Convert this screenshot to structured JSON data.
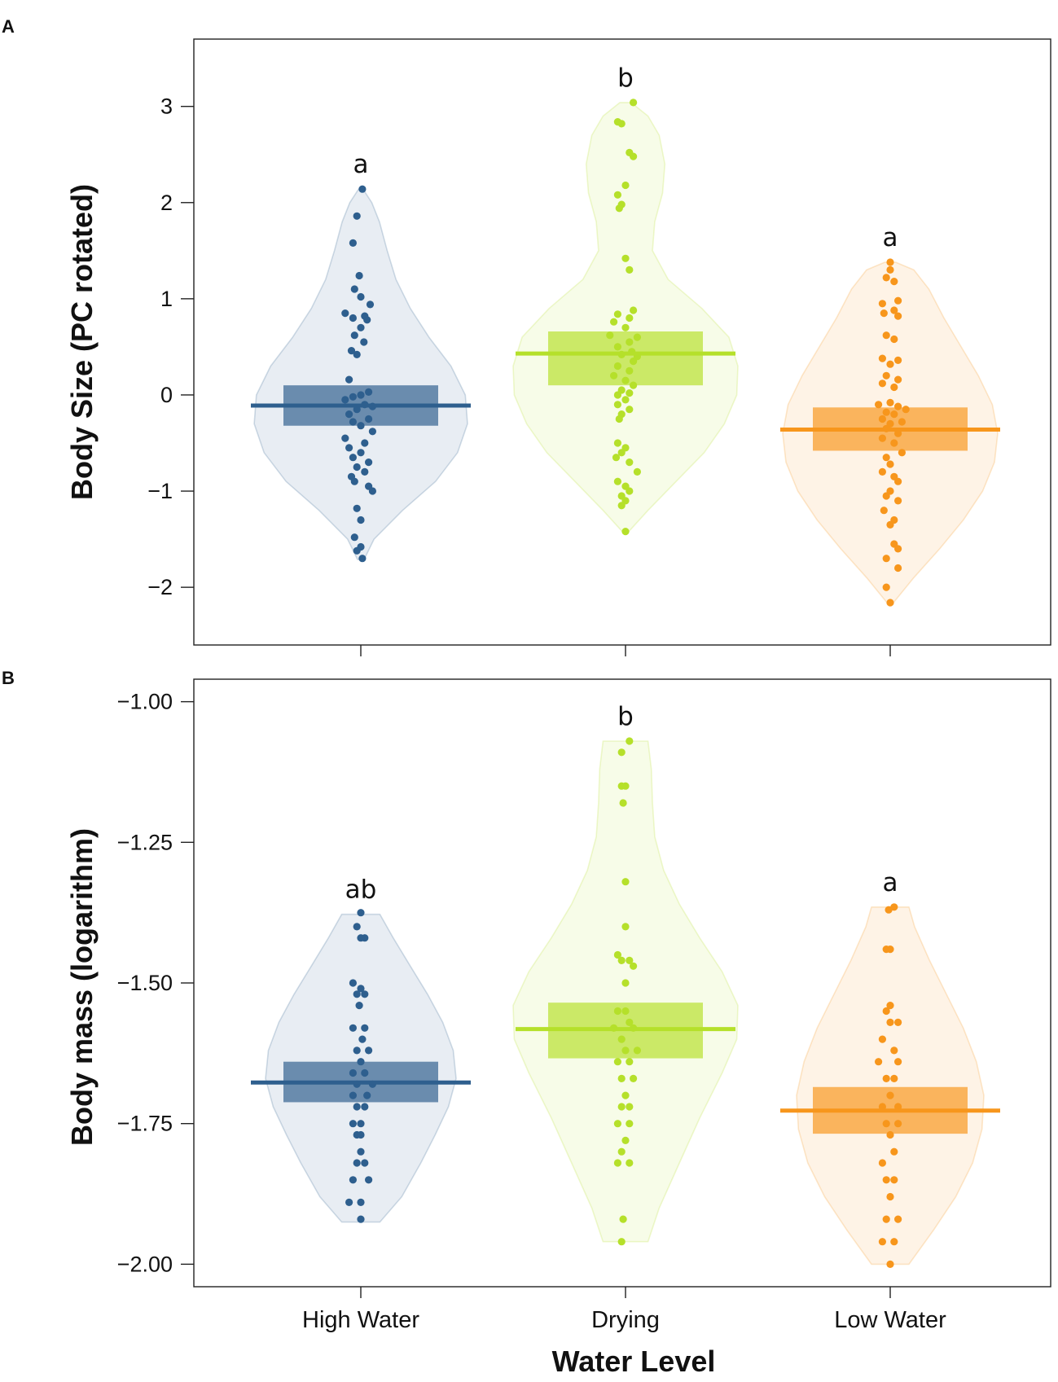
{
  "x_axis_title": "Water Level",
  "chart_data": [
    {
      "type": "violin",
      "panel": "A",
      "ylabel": "Body Size (PC rotated)",
      "xlabel": "",
      "ylim": [
        -2.6,
        3.7
      ],
      "yticks": [
        -2,
        -1,
        0,
        1,
        2,
        3
      ],
      "ytick_labels": [
        "−2",
        "−1",
        "0",
        "1",
        "2",
        "3"
      ],
      "categories": [
        "High Water",
        "Drying",
        "Low Water"
      ],
      "colors": [
        "#2e5f8e",
        "#b5e02a",
        "#f7961c"
      ],
      "groups": [
        {
          "name": "High Water",
          "mean": -0.11,
          "ci_low": -0.32,
          "ci_high": 0.1,
          "letter": "a",
          "violin": [
            [
              -1.71,
              0.03
            ],
            [
              -1.5,
              0.12
            ],
            [
              -1.2,
              0.38
            ],
            [
              -0.9,
              0.68
            ],
            [
              -0.6,
              0.88
            ],
            [
              -0.3,
              0.97
            ],
            [
              0.0,
              0.95
            ],
            [
              0.3,
              0.82
            ],
            [
              0.6,
              0.62
            ],
            [
              0.9,
              0.45
            ],
            [
              1.2,
              0.32
            ],
            [
              1.5,
              0.24
            ],
            [
              1.8,
              0.17
            ],
            [
              2.0,
              0.1
            ],
            [
              2.14,
              0.02
            ]
          ],
          "points": [
            2.14,
            1.86,
            1.58,
            1.24,
            1.1,
            1.02,
            0.94,
            0.85,
            0.82,
            0.8,
            0.78,
            0.7,
            0.62,
            0.55,
            0.46,
            0.42,
            0.16,
            0.03,
            0.0,
            -0.02,
            -0.05,
            -0.1,
            -0.12,
            -0.15,
            -0.2,
            -0.25,
            -0.28,
            -0.32,
            -0.38,
            -0.45,
            -0.5,
            -0.55,
            -0.6,
            -0.65,
            -0.7,
            -0.75,
            -0.8,
            -0.85,
            -0.9,
            -0.95,
            -1.0,
            -1.18,
            -1.3,
            -1.48,
            -1.58,
            -1.62,
            -1.7
          ],
          "offsets": [
            0.02,
            -0.05,
            -0.1,
            -0.02,
            -0.08,
            0.0,
            0.12,
            -0.2,
            0.05,
            -0.1,
            0.08,
            0.0,
            -0.08,
            0.04,
            -0.12,
            -0.05,
            -0.15,
            0.1,
            0.0,
            -0.1,
            -0.2,
            0.05,
            0.15,
            -0.05,
            -0.15,
            0.1,
            -0.1,
            0.0,
            0.15,
            -0.2,
            0.05,
            -0.15,
            0.0,
            -0.1,
            0.1,
            -0.05,
            0.05,
            -0.12,
            -0.08,
            0.1,
            0.15,
            -0.05,
            0.0,
            -0.08,
            0.0,
            -0.05,
            0.02
          ]
        },
        {
          "name": "Drying",
          "mean": 0.43,
          "ci_low": 0.1,
          "ci_high": 0.66,
          "letter": "b",
          "violin": [
            [
              -1.42,
              0.03
            ],
            [
              -1.2,
              0.2
            ],
            [
              -0.9,
              0.45
            ],
            [
              -0.6,
              0.7
            ],
            [
              -0.3,
              0.88
            ],
            [
              0.0,
              0.99
            ],
            [
              0.3,
              1.0
            ],
            [
              0.6,
              0.92
            ],
            [
              0.9,
              0.68
            ],
            [
              1.2,
              0.38
            ],
            [
              1.5,
              0.24
            ],
            [
              1.8,
              0.26
            ],
            [
              2.1,
              0.33
            ],
            [
              2.4,
              0.35
            ],
            [
              2.7,
              0.3
            ],
            [
              2.9,
              0.2
            ],
            [
              3.04,
              0.05
            ]
          ],
          "points": [
            3.04,
            2.84,
            2.82,
            2.52,
            2.48,
            2.18,
            2.08,
            1.98,
            1.94,
            1.42,
            1.3,
            0.88,
            0.84,
            0.8,
            0.76,
            0.7,
            0.62,
            0.6,
            0.55,
            0.5,
            0.45,
            0.42,
            0.4,
            0.35,
            0.3,
            0.25,
            0.2,
            0.15,
            0.1,
            0.05,
            0.02,
            0.0,
            -0.05,
            -0.1,
            -0.15,
            -0.2,
            -0.25,
            -0.5,
            -0.55,
            -0.6,
            -0.65,
            -0.7,
            -0.8,
            -0.9,
            -0.95,
            -1.0,
            -1.05,
            -1.1,
            -1.15,
            -1.42
          ],
          "offsets": [
            0.1,
            -0.1,
            -0.05,
            0.05,
            0.1,
            0.0,
            -0.1,
            -0.05,
            -0.08,
            0.0,
            0.05,
            0.1,
            -0.1,
            0.05,
            -0.15,
            0.0,
            -0.2,
            0.15,
            0.05,
            -0.1,
            0.08,
            -0.05,
            0.15,
            0.1,
            -0.1,
            0.05,
            -0.15,
            0.0,
            0.1,
            -0.05,
            0.05,
            -0.1,
            0.0,
            -0.1,
            0.05,
            -0.05,
            -0.08,
            -0.1,
            0.0,
            -0.05,
            -0.12,
            0.05,
            0.15,
            -0.1,
            0.0,
            0.05,
            -0.05,
            0.0,
            -0.05,
            0.0
          ]
        },
        {
          "name": "Low Water",
          "mean": -0.36,
          "ci_low": -0.58,
          "ci_high": -0.13,
          "letter": "a",
          "violin": [
            [
              -2.16,
              0.03
            ],
            [
              -1.9,
              0.22
            ],
            [
              -1.6,
              0.46
            ],
            [
              -1.3,
              0.68
            ],
            [
              -1.0,
              0.86
            ],
            [
              -0.7,
              0.97
            ],
            [
              -0.4,
              1.0
            ],
            [
              -0.1,
              0.95
            ],
            [
              0.2,
              0.82
            ],
            [
              0.5,
              0.66
            ],
            [
              0.8,
              0.5
            ],
            [
              1.1,
              0.36
            ],
            [
              1.3,
              0.22
            ],
            [
              1.38,
              0.05
            ]
          ],
          "points": [
            1.38,
            1.3,
            1.22,
            1.18,
            0.98,
            0.95,
            0.88,
            0.85,
            0.82,
            0.62,
            0.58,
            0.38,
            0.36,
            0.32,
            0.2,
            0.16,
            0.12,
            0.08,
            -0.08,
            -0.1,
            -0.12,
            -0.15,
            -0.18,
            -0.2,
            -0.25,
            -0.28,
            -0.3,
            -0.35,
            -0.4,
            -0.45,
            -0.5,
            -0.6,
            -0.65,
            -0.72,
            -0.8,
            -0.85,
            -0.9,
            -1.0,
            -1.05,
            -1.1,
            -1.2,
            -1.3,
            -1.35,
            -1.55,
            -1.6,
            -1.7,
            -1.8,
            -2.0,
            -2.16
          ],
          "offsets": [
            0.0,
            0.0,
            -0.05,
            0.05,
            0.1,
            -0.1,
            0.05,
            -0.08,
            0.1,
            -0.05,
            0.05,
            -0.1,
            0.1,
            0.0,
            -0.05,
            0.1,
            -0.1,
            0.05,
            0.0,
            -0.15,
            0.1,
            0.2,
            -0.05,
            0.05,
            -0.1,
            0.15,
            0.0,
            -0.05,
            0.1,
            -0.1,
            0.05,
            0.15,
            -0.05,
            0.0,
            -0.1,
            0.05,
            0.1,
            0.0,
            -0.05,
            0.1,
            -0.08,
            0.05,
            0.0,
            0.05,
            0.1,
            -0.05,
            0.1,
            -0.05,
            0.0
          ]
        }
      ]
    },
    {
      "type": "violin",
      "panel": "B",
      "ylabel": "Body mass (logarithm)",
      "xlabel": "Water Level",
      "ylim": [
        -2.04,
        -0.96
      ],
      "yticks": [
        -2.0,
        -1.75,
        -1.5,
        -1.25,
        -1.0
      ],
      "ytick_labels": [
        "−2.00",
        "−1.75",
        "−1.50",
        "−1.25",
        "−1.00"
      ],
      "categories": [
        "High Water",
        "Drying",
        "Low Water"
      ],
      "colors": [
        "#2e5f8e",
        "#b5e02a",
        "#f7961c"
      ],
      "groups": [
        {
          "name": "High Water",
          "mean": -1.677,
          "ci_low": -1.712,
          "ci_high": -1.64,
          "letter": "ab",
          "violin": [
            [
              -1.925,
              0.2
            ],
            [
              -1.88,
              0.43
            ],
            [
              -1.82,
              0.63
            ],
            [
              -1.77,
              0.78
            ],
            [
              -1.72,
              0.92
            ],
            [
              -1.67,
              1.0
            ],
            [
              -1.62,
              0.97
            ],
            [
              -1.57,
              0.86
            ],
            [
              -1.52,
              0.7
            ],
            [
              -1.47,
              0.52
            ],
            [
              -1.42,
              0.34
            ],
            [
              -1.378,
              0.2
            ]
          ],
          "points": [
            -1.375,
            -1.4,
            -1.42,
            -1.42,
            -1.5,
            -1.51,
            -1.52,
            -1.52,
            -1.54,
            -1.58,
            -1.58,
            -1.6,
            -1.62,
            -1.62,
            -1.64,
            -1.66,
            -1.66,
            -1.68,
            -1.68,
            -1.7,
            -1.7,
            -1.72,
            -1.72,
            -1.75,
            -1.75,
            -1.77,
            -1.77,
            -1.8,
            -1.82,
            -1.82,
            -1.85,
            -1.85,
            -1.89,
            -1.89,
            -1.92
          ],
          "offsets": [
            0.0,
            -0.05,
            0.05,
            0.0,
            -0.1,
            0.0,
            -0.05,
            0.05,
            -0.02,
            -0.1,
            0.05,
            0.02,
            -0.05,
            0.1,
            0.0,
            -0.1,
            0.05,
            0.15,
            -0.05,
            0.08,
            -0.1,
            0.05,
            -0.05,
            -0.1,
            0.0,
            -0.05,
            0.0,
            0.0,
            -0.05,
            0.05,
            -0.1,
            0.1,
            -0.15,
            0.0,
            0.0
          ]
        },
        {
          "name": "Drying",
          "mean": -1.582,
          "ci_low": -1.634,
          "ci_high": -1.535,
          "letter": "b",
          "violin": [
            [
              -1.96,
              0.2
            ],
            [
              -1.9,
              0.3
            ],
            [
              -1.82,
              0.48
            ],
            [
              -1.74,
              0.66
            ],
            [
              -1.66,
              0.86
            ],
            [
              -1.6,
              0.99
            ],
            [
              -1.54,
              1.0
            ],
            [
              -1.48,
              0.86
            ],
            [
              -1.42,
              0.66
            ],
            [
              -1.36,
              0.48
            ],
            [
              -1.3,
              0.34
            ],
            [
              -1.24,
              0.26
            ],
            [
              -1.18,
              0.24
            ],
            [
              -1.12,
              0.23
            ],
            [
              -1.07,
              0.2
            ]
          ],
          "points": [
            -1.07,
            -1.09,
            -1.15,
            -1.15,
            -1.18,
            -1.32,
            -1.4,
            -1.45,
            -1.46,
            -1.46,
            -1.47,
            -1.5,
            -1.55,
            -1.55,
            -1.57,
            -1.58,
            -1.58,
            -1.6,
            -1.62,
            -1.62,
            -1.64,
            -1.64,
            -1.67,
            -1.67,
            -1.7,
            -1.72,
            -1.72,
            -1.75,
            -1.75,
            -1.78,
            -1.8,
            -1.82,
            -1.82,
            -1.92,
            -1.96
          ],
          "offsets": [
            0.05,
            -0.05,
            -0.05,
            0.0,
            -0.03,
            0.0,
            0.0,
            -0.1,
            -0.05,
            0.05,
            0.1,
            0.0,
            -0.1,
            0.0,
            0.05,
            -0.15,
            0.1,
            -0.05,
            0.0,
            0.15,
            -0.1,
            0.05,
            -0.05,
            0.1,
            0.0,
            -0.05,
            0.05,
            -0.1,
            0.05,
            0.0,
            -0.05,
            -0.1,
            0.05,
            -0.03,
            -0.05
          ]
        },
        {
          "name": "Low Water",
          "mean": -1.727,
          "ci_low": -1.768,
          "ci_high": -1.685,
          "letter": "a",
          "violin": [
            [
              -2.0,
              0.2
            ],
            [
              -1.94,
              0.46
            ],
            [
              -1.88,
              0.7
            ],
            [
              -1.82,
              0.88
            ],
            [
              -1.76,
              0.98
            ],
            [
              -1.7,
              1.0
            ],
            [
              -1.64,
              0.92
            ],
            [
              -1.58,
              0.78
            ],
            [
              -1.52,
              0.6
            ],
            [
              -1.46,
              0.42
            ],
            [
              -1.4,
              0.26
            ],
            [
              -1.365,
              0.2
            ]
          ],
          "points": [
            -1.365,
            -1.37,
            -1.44,
            -1.44,
            -1.54,
            -1.55,
            -1.57,
            -1.57,
            -1.6,
            -1.62,
            -1.64,
            -1.64,
            -1.67,
            -1.67,
            -1.7,
            -1.72,
            -1.72,
            -1.75,
            -1.75,
            -1.77,
            -1.8,
            -1.82,
            -1.85,
            -1.85,
            -1.88,
            -1.92,
            -1.92,
            -1.96,
            -1.96,
            -2.0
          ],
          "offsets": [
            0.05,
            -0.02,
            -0.05,
            0.0,
            0.0,
            -0.05,
            0.1,
            0.0,
            -0.1,
            0.05,
            -0.15,
            0.1,
            -0.05,
            0.05,
            0.0,
            -0.1,
            0.1,
            -0.05,
            0.1,
            0.0,
            0.05,
            -0.1,
            -0.05,
            0.05,
            0.0,
            -0.05,
            0.1,
            0.05,
            -0.1,
            0.0
          ]
        }
      ]
    }
  ]
}
